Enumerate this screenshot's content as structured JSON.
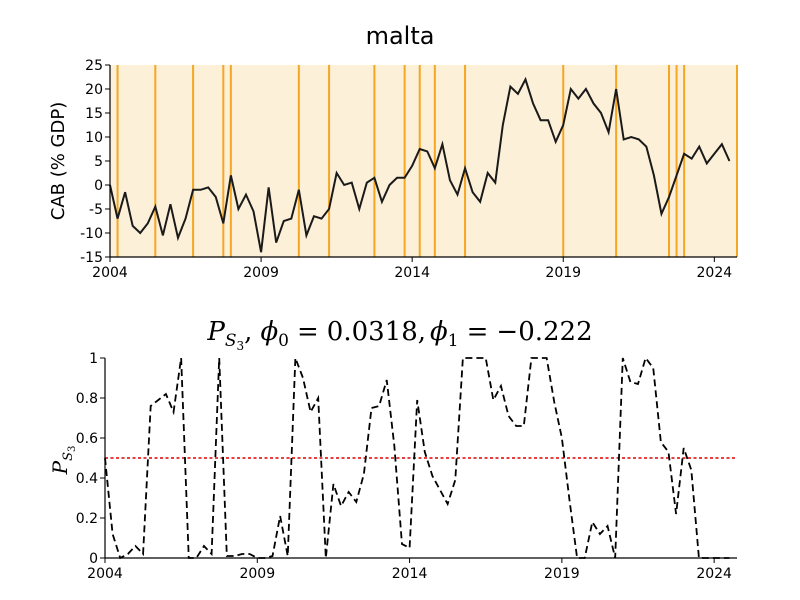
{
  "chart_data": [
    {
      "type": "line",
      "title": "malta",
      "ylabel": "CAB (% GDP)",
      "xlabel": "",
      "xlim": [
        2004.0,
        2024.75
      ],
      "ylim": [
        -15,
        25
      ],
      "x_ticks": [
        2004,
        2009,
        2014,
        2019,
        2024
      ],
      "y_ticks": [
        25,
        20,
        15,
        10,
        5,
        0,
        -5,
        -10,
        -15
      ],
      "background_color": "#fdf0d8",
      "vline_color": "#f5a623",
      "line_color": "#1a1a1a",
      "grid": false,
      "vlines": [
        2004.25,
        2005.5,
        2006.75,
        2007.75,
        2008.0,
        2010.25,
        2011.25,
        2012.75,
        2013.75,
        2014.25,
        2014.75,
        2015.75,
        2019.0,
        2020.75,
        2022.5,
        2022.75,
        2023.0,
        2024.75
      ],
      "series": [
        {
          "x": [
            2004.0,
            2004.25,
            2004.5,
            2004.75,
            2005.0,
            2005.25,
            2005.5,
            2005.75,
            2006.0,
            2006.25,
            2006.5,
            2006.75,
            2007.0,
            2007.25,
            2007.5,
            2007.75,
            2008.0,
            2008.25,
            2008.5,
            2008.75,
            2009.0,
            2009.25,
            2009.5,
            2009.75,
            2010.0,
            2010.25,
            2010.5,
            2010.75,
            2011.0,
            2011.25,
            2011.5,
            2011.75,
            2012.0,
            2012.25,
            2012.5,
            2012.75,
            2013.0,
            2013.25,
            2013.5,
            2013.75,
            2014.0,
            2014.25,
            2014.5,
            2014.75,
            2015.0,
            2015.25,
            2015.5,
            2015.75,
            2016.0,
            2016.25,
            2016.5,
            2016.75,
            2017.0,
            2017.25,
            2017.5,
            2017.75,
            2018.0,
            2018.25,
            2018.5,
            2018.75,
            2019.0,
            2019.25,
            2019.5,
            2019.75,
            2020.0,
            2020.25,
            2020.5,
            2020.75,
            2021.0,
            2021.25,
            2021.5,
            2021.75,
            2022.0,
            2022.25,
            2022.5,
            2022.75,
            2023.0,
            2023.25,
            2023.5,
            2023.75,
            2024.0,
            2024.25,
            2024.5
          ],
          "y": [
            0,
            -7,
            -1.5,
            -8.5,
            -10,
            -8,
            -4.5,
            -10.5,
            -4,
            -11,
            -7,
            -1,
            -1,
            -0.5,
            -2.5,
            -8,
            2,
            -5,
            -2,
            -5.5,
            -14,
            -0.5,
            -12,
            -7.5,
            -7,
            -1,
            -10.5,
            -6.5,
            -7,
            -5,
            2.5,
            0,
            0.5,
            -5,
            0.5,
            1.5,
            -3.5,
            0,
            1.5,
            1.5,
            4,
            7.5,
            7,
            3.5,
            8.5,
            1,
            -2,
            3.5,
            -1.5,
            -3.5,
            2.5,
            0.5,
            12.5,
            20.5,
            19,
            22,
            17,
            13.5,
            13.5,
            9,
            12.5,
            20,
            18,
            20,
            17,
            15,
            11,
            20,
            9.5,
            10,
            9.5,
            8,
            2,
            -6,
            -2.5,
            2,
            6.5,
            5.5,
            8,
            4.5,
            6.5,
            8.5,
            5
          ]
        }
      ]
    },
    {
      "type": "line",
      "title": "",
      "title_math": {
        "p": "P",
        "sub": "S",
        "subsub": "3",
        "phi0_label": "ϕ",
        "phi0_sub": "0",
        "phi0_value": "0.0318",
        "phi1_label": "ϕ",
        "phi1_sub": "1",
        "phi1_value": "−0.222",
        "sep": ",",
        "eq": "="
      },
      "ylabel_math": {
        "p": "P",
        "sub": "S",
        "subsub": "3"
      },
      "xlabel": "",
      "xlim": [
        2004.0,
        2024.75
      ],
      "ylim": [
        0,
        1
      ],
      "x_ticks": [
        2004,
        2009,
        2014,
        2019,
        2024
      ],
      "y_ticks": [
        1,
        0.8,
        0.6,
        0.4,
        0.2,
        0
      ],
      "threshold": 0.5,
      "threshold_color": "#dd0000",
      "line_color": "#000000",
      "grid": false,
      "series": [
        {
          "x": [
            2004.0,
            2004.25,
            2004.5,
            2004.75,
            2005.0,
            2005.25,
            2005.5,
            2005.75,
            2006.0,
            2006.25,
            2006.5,
            2006.75,
            2007.0,
            2007.25,
            2007.5,
            2007.75,
            2008.0,
            2008.25,
            2008.5,
            2008.75,
            2009.0,
            2009.25,
            2009.5,
            2009.75,
            2010.0,
            2010.25,
            2010.5,
            2010.75,
            2011.0,
            2011.25,
            2011.5,
            2011.75,
            2012.0,
            2012.25,
            2012.5,
            2012.75,
            2013.0,
            2013.25,
            2013.5,
            2013.75,
            2014.0,
            2014.25,
            2014.5,
            2014.75,
            2015.0,
            2015.25,
            2015.5,
            2015.75,
            2016.0,
            2016.25,
            2016.5,
            2016.75,
            2017.0,
            2017.25,
            2017.5,
            2017.75,
            2018.0,
            2018.25,
            2018.5,
            2018.75,
            2019.0,
            2019.25,
            2019.5,
            2019.75,
            2020.0,
            2020.25,
            2020.5,
            2020.75,
            2021.0,
            2021.25,
            2021.5,
            2021.75,
            2022.0,
            2022.25,
            2022.5,
            2022.75,
            2023.0,
            2023.25,
            2023.5,
            2023.75,
            2024.0,
            2024.25,
            2024.5
          ],
          "y": [
            0.5,
            0.12,
            0.0,
            0.02,
            0.06,
            0.02,
            0.76,
            0.79,
            0.82,
            0.73,
            1.0,
            0.0,
            0.0,
            0.06,
            0.02,
            1.0,
            0.01,
            0.01,
            0.02,
            0.02,
            0.0,
            0.0,
            0.01,
            0.21,
            0.01,
            1.0,
            0.9,
            0.73,
            0.8,
            0.0,
            0.37,
            0.26,
            0.33,
            0.28,
            0.42,
            0.75,
            0.76,
            0.89,
            0.56,
            0.07,
            0.05,
            0.79,
            0.53,
            0.41,
            0.34,
            0.27,
            0.39,
            1.0,
            1.0,
            1.0,
            1.0,
            0.79,
            0.86,
            0.71,
            0.66,
            0.66,
            1.0,
            1.0,
            1.0,
            0.78,
            0.6,
            0.29,
            0.0,
            0.0,
            0.18,
            0.12,
            0.16,
            0.0,
            1.0,
            0.88,
            0.87,
            1.0,
            0.95,
            0.58,
            0.53,
            0.22,
            0.55,
            0.44,
            0.0,
            0.0,
            0.0,
            0.0,
            0.0
          ]
        }
      ]
    }
  ]
}
